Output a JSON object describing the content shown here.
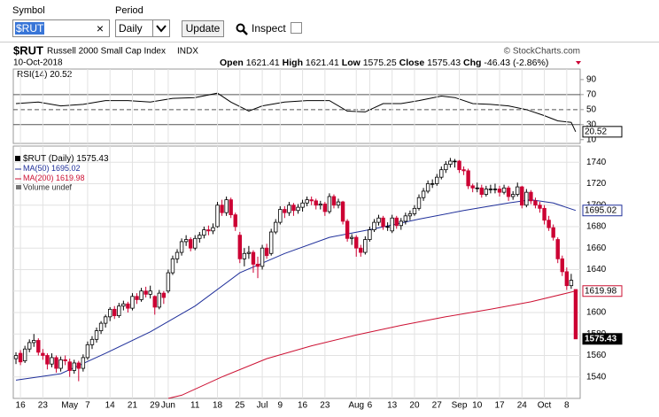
{
  "toolbar": {
    "symbol_label": "Symbol",
    "symbol_value": "$RUT",
    "clear": "×",
    "period_label": "Period",
    "period_value": "Daily",
    "update": "Update",
    "inspect": "Inspect"
  },
  "chart_data": {
    "type": "candlestick",
    "title": "$RUT",
    "subtitle": "Russell 2000 Small Cap Index",
    "exchange": "INDX",
    "credit": "© StockCharts.com",
    "date": "10-Oct-2018",
    "quote_labels": [
      "Open",
      "High",
      "Low",
      "Close",
      "Chg"
    ],
    "change": "-46.43 (-2.86%)",
    "price": {
      "name": "$RUT (Daily)",
      "up_color": "#000000",
      "down_color": "#cc0033",
      "candles": [
        [
          1557,
          1563,
          1552,
          1560
        ],
        [
          1562,
          1565,
          1551,
          1554
        ],
        [
          1555,
          1569,
          1553,
          1566
        ],
        [
          1566,
          1575,
          1563,
          1572
        ],
        [
          1572,
          1580,
          1568,
          1574
        ],
        [
          1574,
          1576,
          1560,
          1563
        ],
        [
          1562,
          1566,
          1556,
          1560
        ],
        [
          1560,
          1562,
          1547,
          1552
        ],
        [
          1552,
          1562,
          1549,
          1558
        ],
        [
          1558,
          1560,
          1544,
          1548
        ],
        [
          1548,
          1559,
          1545,
          1556
        ],
        [
          1556,
          1560,
          1551,
          1555
        ],
        [
          1554,
          1557,
          1540,
          1546
        ],
        [
          1546,
          1556,
          1543,
          1553
        ],
        [
          1553,
          1555,
          1536,
          1548
        ],
        [
          1548,
          1561,
          1545,
          1558
        ],
        [
          1558,
          1573,
          1556,
          1570
        ],
        [
          1570,
          1578,
          1566,
          1575
        ],
        [
          1575,
          1586,
          1572,
          1583
        ],
        [
          1583,
          1592,
          1580,
          1590
        ],
        [
          1590,
          1598,
          1586,
          1596
        ],
        [
          1596,
          1605,
          1592,
          1603
        ],
        [
          1603,
          1606,
          1594,
          1597
        ],
        [
          1597,
          1609,
          1595,
          1606
        ],
        [
          1606,
          1611,
          1602,
          1608
        ],
        [
          1608,
          1610,
          1600,
          1604
        ],
        [
          1604,
          1618,
          1602,
          1615
        ],
        [
          1615,
          1618,
          1608,
          1612
        ],
        [
          1612,
          1623,
          1610,
          1620
        ],
        [
          1620,
          1624,
          1614,
          1617
        ],
        [
          1617,
          1625,
          1613,
          1620
        ],
        [
          1615,
          1616,
          1598,
          1605
        ],
        [
          1605,
          1621,
          1603,
          1618
        ],
        [
          1618,
          1620,
          1608,
          1614
        ],
        [
          1620,
          1640,
          1618,
          1637
        ],
        [
          1637,
          1653,
          1635,
          1650
        ],
        [
          1650,
          1659,
          1646,
          1656
        ],
        [
          1656,
          1669,
          1653,
          1666
        ],
        [
          1666,
          1672,
          1662,
          1668
        ],
        [
          1668,
          1670,
          1657,
          1660
        ],
        [
          1660,
          1672,
          1658,
          1669
        ],
        [
          1669,
          1675,
          1665,
          1672
        ],
        [
          1672,
          1680,
          1669,
          1677
        ],
        [
          1677,
          1681,
          1672,
          1676
        ],
        [
          1676,
          1683,
          1673,
          1679
        ],
        [
          1680,
          1703,
          1679,
          1700
        ],
        [
          1700,
          1705,
          1690,
          1693
        ],
        [
          1693,
          1708,
          1690,
          1705
        ],
        [
          1705,
          1707,
          1688,
          1691
        ],
        [
          1691,
          1693,
          1676,
          1680
        ],
        [
          1672,
          1675,
          1646,
          1650
        ],
        [
          1650,
          1660,
          1643,
          1655
        ],
        [
          1655,
          1662,
          1650,
          1656
        ],
        [
          1656,
          1658,
          1637,
          1645
        ],
        [
          1645,
          1652,
          1632,
          1643
        ],
        [
          1643,
          1663,
          1640,
          1660
        ],
        [
          1660,
          1664,
          1650,
          1653
        ],
        [
          1655,
          1678,
          1653,
          1675
        ],
        [
          1675,
          1687,
          1673,
          1684
        ],
        [
          1684,
          1699,
          1682,
          1696
        ],
        [
          1696,
          1699,
          1688,
          1693
        ],
        [
          1693,
          1703,
          1690,
          1700
        ],
        [
          1700,
          1702,
          1690,
          1695
        ],
        [
          1695,
          1701,
          1692,
          1698
        ],
        [
          1698,
          1705,
          1694,
          1702
        ],
        [
          1702,
          1708,
          1699,
          1705
        ],
        [
          1705,
          1708,
          1700,
          1704
        ],
        [
          1704,
          1706,
          1696,
          1700
        ],
        [
          1700,
          1704,
          1696,
          1701
        ],
        [
          1701,
          1703,
          1690,
          1694
        ],
        [
          1694,
          1711,
          1692,
          1708
        ],
        [
          1708,
          1710,
          1697,
          1700
        ],
        [
          1700,
          1706,
          1697,
          1703
        ],
        [
          1703,
          1704,
          1682,
          1685
        ],
        [
          1685,
          1687,
          1666,
          1669
        ],
        [
          1669,
          1673,
          1663,
          1670
        ],
        [
          1670,
          1672,
          1652,
          1660
        ],
        [
          1660,
          1663,
          1652,
          1656
        ],
        [
          1656,
          1671,
          1654,
          1668
        ],
        [
          1668,
          1680,
          1666,
          1677
        ],
        [
          1677,
          1687,
          1675,
          1684
        ],
        [
          1684,
          1691,
          1681,
          1688
        ],
        [
          1688,
          1690,
          1677,
          1680
        ],
        [
          1680,
          1684,
          1676,
          1680
        ],
        [
          1676,
          1691,
          1674,
          1688
        ],
        [
          1688,
          1690,
          1678,
          1681
        ],
        [
          1681,
          1688,
          1677,
          1685
        ],
        [
          1685,
          1693,
          1682,
          1690
        ],
        [
          1690,
          1695,
          1686,
          1692
        ],
        [
          1692,
          1700,
          1690,
          1697
        ],
        [
          1697,
          1710,
          1695,
          1707
        ],
        [
          1707,
          1716,
          1704,
          1713
        ],
        [
          1713,
          1723,
          1711,
          1720
        ],
        [
          1720,
          1724,
          1716,
          1720
        ],
        [
          1720,
          1729,
          1718,
          1726
        ],
        [
          1726,
          1736,
          1724,
          1733
        ],
        [
          1733,
          1741,
          1730,
          1738
        ],
        [
          1738,
          1744,
          1735,
          1741
        ],
        [
          1741,
          1743,
          1735,
          1741
        ],
        [
          1741,
          1742,
          1730,
          1733
        ],
        [
          1733,
          1736,
          1728,
          1732
        ],
        [
          1732,
          1734,
          1715,
          1718
        ],
        [
          1718,
          1720,
          1712,
          1716
        ],
        [
          1716,
          1721,
          1712,
          1716
        ],
        [
          1716,
          1719,
          1707,
          1710
        ],
        [
          1710,
          1718,
          1708,
          1715
        ],
        [
          1715,
          1719,
          1711,
          1715
        ],
        [
          1715,
          1720,
          1711,
          1715
        ],
        [
          1715,
          1718,
          1708,
          1712
        ],
        [
          1712,
          1719,
          1710,
          1716
        ],
        [
          1716,
          1718,
          1704,
          1708
        ],
        [
          1708,
          1713,
          1705,
          1710
        ],
        [
          1710,
          1721,
          1708,
          1717
        ],
        [
          1717,
          1718,
          1697,
          1700
        ],
        [
          1700,
          1715,
          1698,
          1712
        ],
        [
          1712,
          1714,
          1701,
          1704
        ],
        [
          1704,
          1707,
          1697,
          1700
        ],
        [
          1700,
          1703,
          1693,
          1697
        ],
        [
          1697,
          1700,
          1682,
          1686
        ],
        [
          1686,
          1690,
          1676,
          1679
        ],
        [
          1679,
          1682,
          1667,
          1670
        ],
        [
          1668,
          1670,
          1646,
          1650
        ],
        [
          1650,
          1653,
          1634,
          1638
        ],
        [
          1638,
          1642,
          1621,
          1625
        ],
        [
          1625,
          1636,
          1622,
          1630
        ],
        [
          1621.41,
          1621.41,
          1575.25,
          1575.43
        ]
      ]
    },
    "moving_averages": [
      {
        "name": "MA(50)",
        "color": "#1f2f9a",
        "x": [
          0,
          10,
          20,
          30,
          40,
          50,
          60,
          70,
          80,
          90,
          100,
          110,
          115,
          120,
          125
        ],
        "values": [
          1537,
          1543,
          1562,
          1582,
          1606,
          1637,
          1655,
          1670,
          1678,
          1687,
          1695,
          1702,
          1705,
          1702,
          1695.02
        ]
      },
      {
        "name": "MA(200)",
        "color": "#cc1133",
        "x": [
          34,
          37,
          46,
          56,
          66,
          76,
          86,
          96,
          106,
          115,
          125
        ],
        "values": [
          1520,
          1523,
          1540,
          1557,
          1569,
          1579,
          1588,
          1596,
          1603,
          1610,
          1619.98
        ]
      }
    ],
    "volume": "Volume undef",
    "xlim": [
      -0.6,
      126
    ],
    "ylim": [
      1520,
      1755
    ],
    "yticks": [
      1540,
      1560,
      1580,
      1600,
      1620,
      1640,
      1660,
      1680,
      1700,
      1720,
      1740
    ],
    "xticks": [
      {
        "value": 1,
        "label": "16"
      },
      {
        "value": 6,
        "label": "23"
      },
      {
        "value": 12,
        "label": "May"
      },
      {
        "value": 16,
        "label": "7"
      },
      {
        "value": 21,
        "label": "14"
      },
      {
        "value": 26,
        "label": "21"
      },
      {
        "value": 31,
        "label": "29"
      },
      {
        "value": 34,
        "label": "Jun"
      },
      {
        "value": 40,
        "label": "11"
      },
      {
        "value": 45,
        "label": "18"
      },
      {
        "value": 50,
        "label": "25"
      },
      {
        "value": 55,
        "label": "Jul"
      },
      {
        "value": 59,
        "label": "9"
      },
      {
        "value": 64,
        "label": "16"
      },
      {
        "value": 69,
        "label": "23"
      },
      {
        "value": 76,
        "label": "Aug"
      },
      {
        "value": 79,
        "label": "6"
      },
      {
        "value": 84,
        "label": "13"
      },
      {
        "value": 89,
        "label": "20"
      },
      {
        "value": 94,
        "label": "27"
      },
      {
        "value": 99,
        "label": "Sep"
      },
      {
        "value": 103,
        "label": "10"
      },
      {
        "value": 108,
        "label": "17"
      },
      {
        "value": 113,
        "label": "24"
      },
      {
        "value": 118,
        "label": "Oct"
      },
      {
        "value": 123,
        "label": "8"
      }
    ],
    "grid": true,
    "rsi": {
      "name": "RSI(14)",
      "color": "#000000",
      "x": [
        0,
        5,
        10,
        15,
        20,
        25,
        30,
        35,
        40,
        45,
        48,
        52,
        55,
        60,
        65,
        70,
        74,
        78,
        82,
        86,
        90,
        95,
        98,
        102,
        106,
        110,
        114,
        118,
        121,
        124,
        125
      ],
      "values": [
        58,
        60,
        55,
        57,
        62,
        62,
        60,
        65,
        66,
        72,
        60,
        48,
        55,
        60,
        62,
        62,
        48,
        47,
        58,
        58,
        62,
        68,
        66,
        58,
        57,
        55,
        50,
        42,
        35,
        33,
        20.52
      ],
      "ylim": [
        5,
        104
      ],
      "yticks": [
        10,
        30,
        50,
        70,
        90
      ],
      "levels": [
        30,
        50,
        70
      ]
    }
  }
}
